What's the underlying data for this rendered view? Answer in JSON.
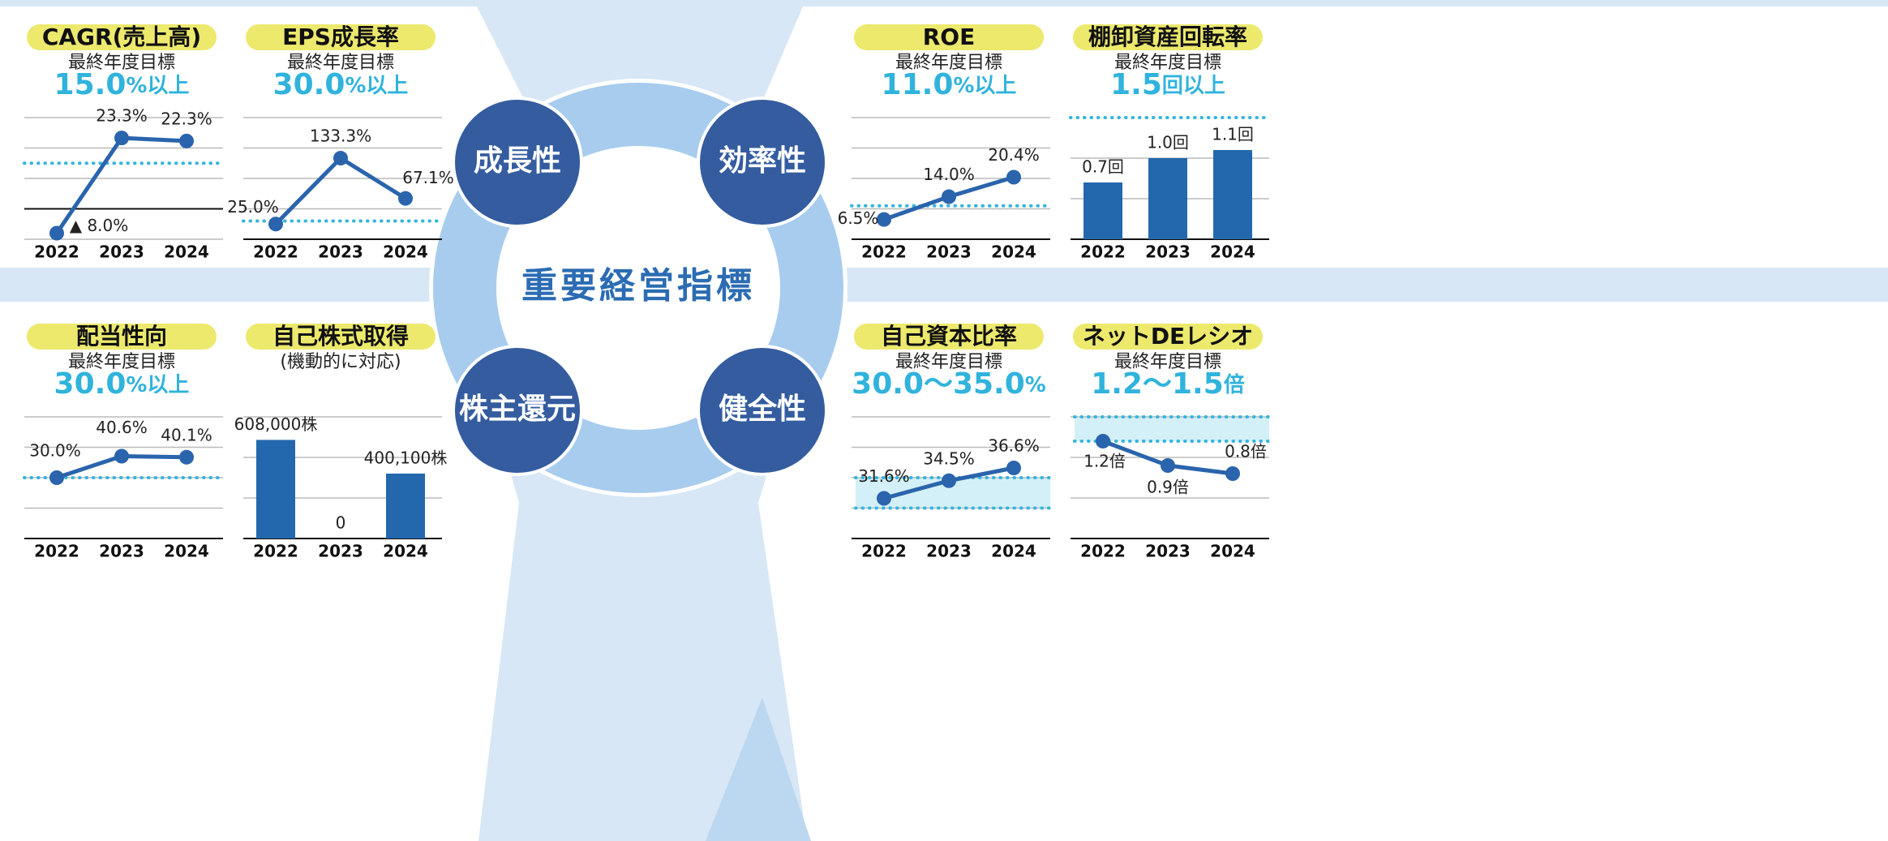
{
  "center": {
    "title": "重要経営指標",
    "nodes": [
      "成長性",
      "効率性",
      "株主還元",
      "健全性"
    ]
  },
  "chart_data": [
    {
      "type": "line",
      "title": "CAGR(売上高)",
      "subtitle": "最終年度目標",
      "target": {
        "value": 15,
        "label": "15.0"
      },
      "target_unit": "%以上",
      "categories": [
        "2022",
        "2023",
        "2024"
      ],
      "values": [
        -8.0,
        23.3,
        22.3
      ],
      "value_labels": [
        "▲ 8.0%",
        "23.3%",
        "22.3%"
      ],
      "ylim": [
        -10,
        30
      ],
      "yticks": [
        -10,
        0,
        10,
        20,
        30
      ],
      "color": "#2a64ac",
      "grid": true
    },
    {
      "type": "line",
      "title": "EPS成長率",
      "subtitle": "最終年度目標",
      "target": {
        "value": 30,
        "label": "30.0"
      },
      "target_unit": "%以上",
      "categories": [
        "2022",
        "2023",
        "2024"
      ],
      "values": [
        25.0,
        133.3,
        67.1
      ],
      "value_labels": [
        "25.0%",
        "133.3%",
        "67.1%"
      ],
      "ylim": [
        0,
        200
      ],
      "yticks": [
        0,
        50,
        100,
        150,
        200
      ],
      "color": "#2a64ac",
      "grid": true
    },
    {
      "type": "line",
      "title": "ROE",
      "subtitle": "最終年度目標",
      "target": {
        "value": 11,
        "label": "11.0"
      },
      "target_unit": "%以上",
      "categories": [
        "2022",
        "2023",
        "2024"
      ],
      "values": [
        6.5,
        14.0,
        20.4
      ],
      "value_labels": [
        "6.5%",
        "14.0%",
        "20.4%"
      ],
      "ylim": [
        0,
        40
      ],
      "yticks": [
        0,
        10,
        20,
        30,
        40
      ],
      "color": "#2a64ac",
      "grid": true
    },
    {
      "type": "bar",
      "title": "棚卸資産回転率",
      "subtitle": "最終年度目標",
      "target": {
        "value": 1.5,
        "label": "1.5"
      },
      "target_unit": "回以上",
      "categories": [
        "2022",
        "2023",
        "2024"
      ],
      "values": [
        0.7,
        1.0,
        1.1
      ],
      "value_labels": [
        "0.7回",
        "1.0回",
        "1.1回"
      ],
      "ylim": [
        0,
        1.5
      ],
      "yticks": [
        0,
        0.5,
        1
      ],
      "color": "#2368ad",
      "grid": true
    },
    {
      "type": "line",
      "title": "配当性向",
      "subtitle": "最終年度目標",
      "target": {
        "value": 30,
        "label": "30.0"
      },
      "target_unit": "%以上",
      "categories": [
        "2022",
        "2023",
        "2024"
      ],
      "values": [
        30.0,
        40.6,
        40.1
      ],
      "value_labels": [
        "30.0%",
        "40.6%",
        "40.1%"
      ],
      "ylim": [
        0,
        60
      ],
      "yticks": [
        0,
        15,
        30,
        45,
        60
      ],
      "color": "#2a64ac",
      "grid": true
    },
    {
      "type": "bar",
      "title": "自己株式取得",
      "subtitle": "(機動的に対応)",
      "categories": [
        "2022",
        "2023",
        "2024"
      ],
      "values": [
        608000,
        0,
        400100
      ],
      "value_labels": [
        "608,000株",
        "0",
        "400,100株"
      ],
      "ylim": [
        0,
        750000
      ],
      "yticks": [
        0,
        250000,
        500000,
        750000
      ],
      "color": "#2368ad",
      "grid": true
    },
    {
      "type": "line",
      "title": "自己資本比率",
      "subtitle": "最終年度目標",
      "target_range": [
        30,
        35
      ],
      "target_label": "30.0～35.0",
      "target_unit": "%",
      "categories": [
        "2022",
        "2023",
        "2024"
      ],
      "values": [
        31.6,
        34.5,
        36.6
      ],
      "value_labels": [
        "31.6%",
        "34.5%",
        "36.6%"
      ],
      "ylim": [
        25,
        45
      ],
      "yticks": [
        25,
        30,
        35,
        40,
        45
      ],
      "color": "#2a64ac",
      "grid": true
    },
    {
      "type": "line",
      "title": "ネットDEレシオ",
      "subtitle": "最終年度目標",
      "target_range": [
        1.2,
        1.5
      ],
      "target_label": "1.2～1.5",
      "target_unit": "倍",
      "categories": [
        "2022",
        "2023",
        "2024"
      ],
      "values": [
        1.2,
        0.9,
        0.8
      ],
      "value_labels": [
        "1.2倍",
        "0.9倍",
        "0.8倍"
      ],
      "ylim": [
        0,
        1.5
      ],
      "yticks": [
        0,
        0.5,
        1,
        1.5
      ],
      "color": "#2a64ac",
      "grid": true
    }
  ]
}
